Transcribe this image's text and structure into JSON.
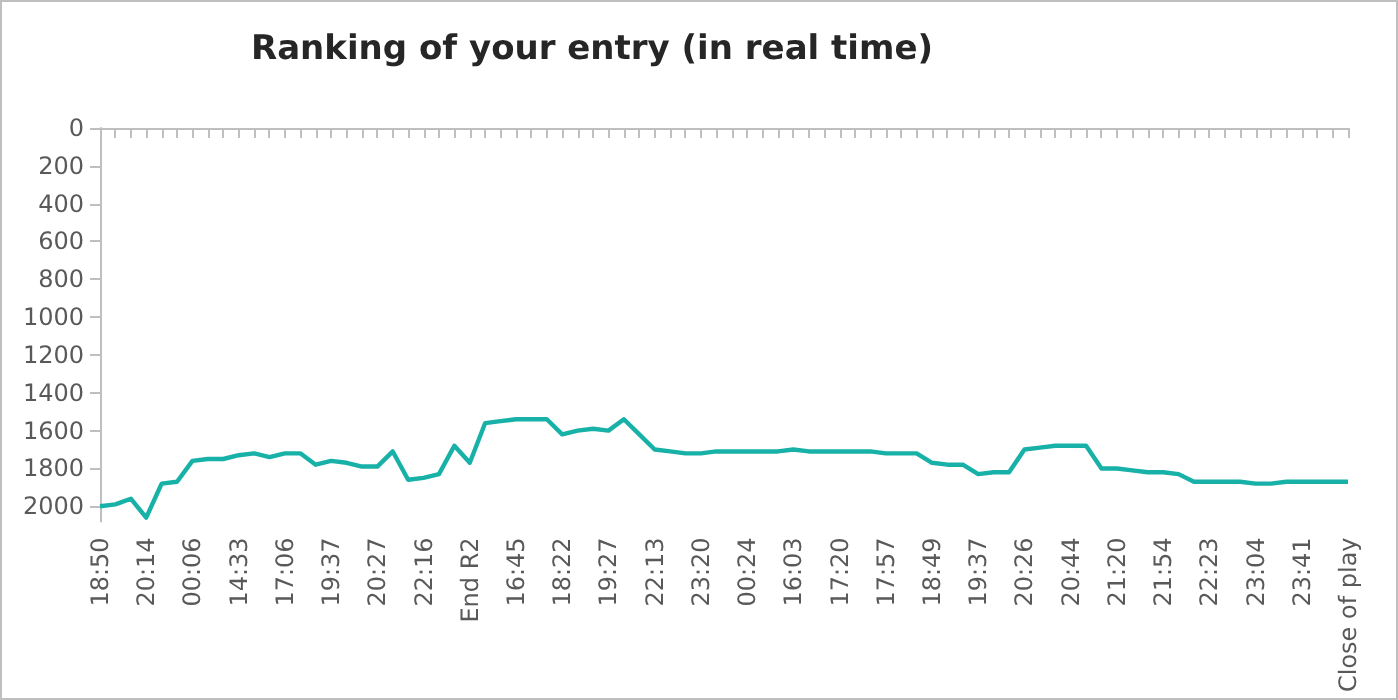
{
  "chart_data": {
    "type": "line",
    "title": "Ranking of your entry (in real time)",
    "categories": [
      "18:50",
      null,
      null,
      "20:14",
      null,
      null,
      "00:06",
      null,
      null,
      "14:33",
      null,
      null,
      "17:06",
      null,
      null,
      "19:37",
      null,
      null,
      "20:27",
      null,
      null,
      "22:16",
      null,
      null,
      "End R2",
      null,
      null,
      "16:45",
      null,
      null,
      "18:22",
      null,
      null,
      "19:27",
      null,
      null,
      "22:13",
      null,
      null,
      "23:20",
      null,
      null,
      "00:24",
      null,
      null,
      "16:03",
      null,
      null,
      "17:20",
      null,
      null,
      "17:57",
      null,
      null,
      "18:49",
      null,
      null,
      "19:37",
      null,
      null,
      "20:26",
      null,
      null,
      "20:44",
      null,
      null,
      "21:20",
      null,
      null,
      "21:54",
      null,
      null,
      "22:23",
      null,
      null,
      "23:04",
      null,
      null,
      "23:41",
      null,
      null,
      "Close of play"
    ],
    "values": [
      2000,
      1990,
      1960,
      2060,
      1880,
      1870,
      1760,
      1750,
      1750,
      1730,
      1720,
      1740,
      1720,
      1720,
      1780,
      1760,
      1770,
      1790,
      1790,
      1710,
      1860,
      1850,
      1830,
      1680,
      1770,
      1560,
      1550,
      1540,
      1540,
      1540,
      1620,
      1600,
      1590,
      1600,
      1540,
      1620,
      1700,
      1710,
      1720,
      1720,
      1710,
      1710,
      1710,
      1710,
      1710,
      1700,
      1710,
      1710,
      1710,
      1710,
      1710,
      1720,
      1720,
      1720,
      1770,
      1780,
      1780,
      1830,
      1820,
      1820,
      1700,
      1690,
      1680,
      1680,
      1680,
      1800,
      1800,
      1810,
      1820,
      1820,
      1830,
      1870,
      1870,
      1870,
      1870,
      1880,
      1880,
      1870,
      1870,
      1870,
      1870,
      1870
    ],
    "color": "#17b1a8",
    "ylim": [
      2080,
      0
    ],
    "yticks": [
      0,
      200,
      400,
      600,
      800,
      1000,
      1200,
      1400,
      1600,
      1800,
      2000
    ],
    "grid": false,
    "legend": false,
    "marker": "none",
    "line_style": "solid"
  }
}
